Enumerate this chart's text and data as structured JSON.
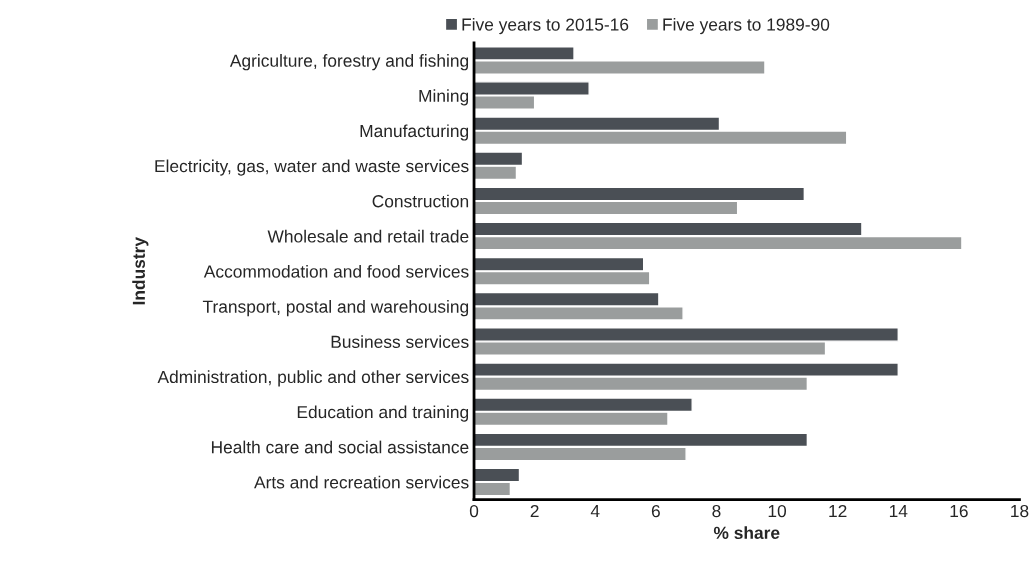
{
  "chart_data": {
    "type": "bar",
    "orientation": "horizontal",
    "xlabel": "% share",
    "ylabel": "Industry",
    "categories": [
      "Agriculture, forestry and fishing",
      "Mining",
      "Manufacturing",
      "Electricity, gas, water and waste services",
      "Construction",
      "Wholesale and retail trade",
      "Accommodation and food services",
      "Transport, postal and warehousing",
      "Business services",
      "Administration, public and other services",
      "Education and training",
      "Health care and social assistance",
      "Arts and recreation services"
    ],
    "series": [
      {
        "name": "Five years to 2015-16",
        "color": "#4a4f55",
        "values": [
          3.3,
          3.8,
          8.1,
          1.6,
          10.9,
          12.8,
          5.6,
          6.1,
          14.0,
          14.0,
          7.2,
          11.0,
          1.5
        ]
      },
      {
        "name": "Five years to 1989-90",
        "color": "#9a9d9d",
        "values": [
          9.6,
          2.0,
          12.3,
          1.4,
          8.7,
          16.1,
          5.8,
          6.9,
          11.6,
          11.0,
          6.4,
          7.0,
          1.2
        ]
      }
    ],
    "xlim": [
      0,
      18
    ],
    "xticks": [
      0,
      2,
      4,
      6,
      8,
      10,
      12,
      14,
      16,
      18
    ],
    "grid": false,
    "legend": "top"
  }
}
